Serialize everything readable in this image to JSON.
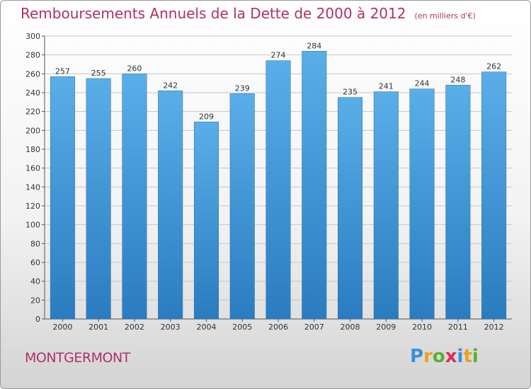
{
  "chart_data": {
    "type": "bar",
    "title": "Remboursements Annuels de la Dette de 2000 à 2012",
    "subtitle": "(en milliers d'€)",
    "categories": [
      "2000",
      "2001",
      "2002",
      "2003",
      "2004",
      "2005",
      "2006",
      "2007",
      "2008",
      "2009",
      "2010",
      "2011",
      "2012"
    ],
    "values": [
      257,
      255,
      260,
      242,
      209,
      239,
      274,
      284,
      235,
      241,
      244,
      248,
      262
    ],
    "ylim": [
      0,
      300
    ],
    "ytick_step": 20,
    "grid": true,
    "colors": {
      "bar_top": "#5aaee8",
      "bar_bottom": "#2a7cc0",
      "grid": "#c8c8c8",
      "title": "#b0306a"
    }
  },
  "footer": {
    "location": "MONTGERMONT",
    "brand": {
      "letters": [
        "P",
        "r",
        "o",
        "x",
        "i",
        "t",
        "i"
      ],
      "colors": [
        "#3a8fd8",
        "#f0a020",
        "#5bb030",
        "#d83060",
        "#3a8fd8",
        "#f0a020",
        "#5bb030"
      ]
    }
  }
}
